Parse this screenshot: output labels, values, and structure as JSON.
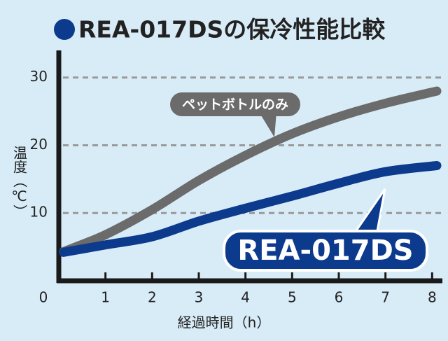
{
  "chart_data": {
    "type": "line",
    "title": "REA-017DSの保冷性能比較",
    "x_label": "経過時間（h）",
    "y_label": "温度（℃）",
    "x": [
      0.1,
      1,
      2,
      3,
      4,
      5,
      6,
      7,
      8.1
    ],
    "series": [
      {
        "name": "ペットボトルのみ",
        "color": "#6b6b6b",
        "values": [
          4.3,
          6.8,
          10.5,
          14.8,
          18.5,
          21.7,
          24.2,
          26.2,
          28.0
        ]
      },
      {
        "name": "REA-017DS",
        "color": "#0c3a8c",
        "values": [
          4.2,
          5.3,
          6.5,
          8.8,
          10.7,
          12.5,
          14.4,
          16.1,
          17.0
        ]
      }
    ],
    "xlim": [
      0,
      8.1
    ],
    "xticks": [
      0,
      1,
      2,
      3,
      4,
      5,
      6,
      7,
      8
    ],
    "ylim": [
      0,
      34
    ],
    "yticks": [
      10,
      20,
      30
    ],
    "grid": true
  }
}
